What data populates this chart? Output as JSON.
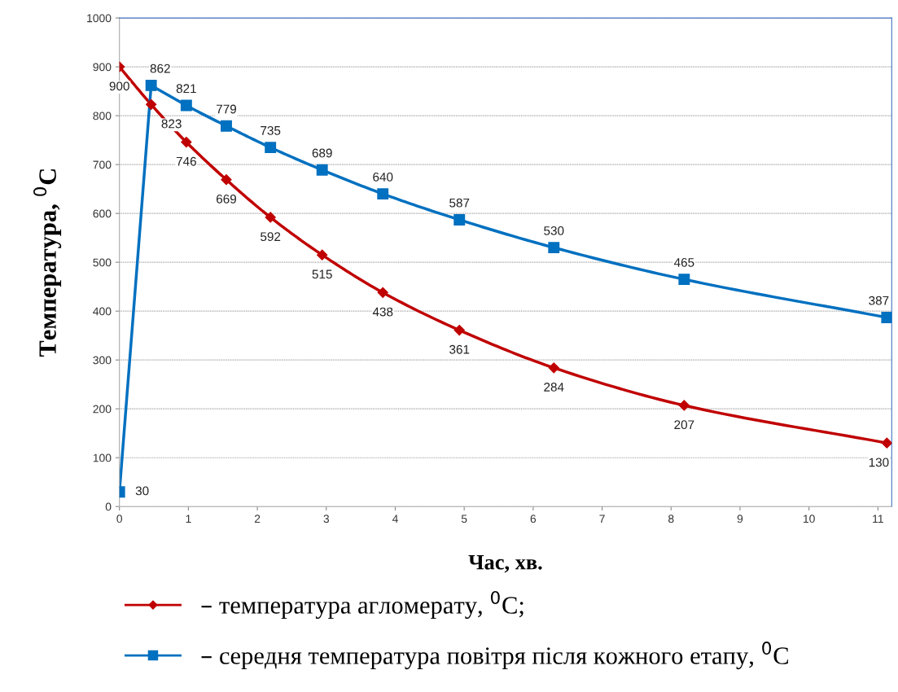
{
  "chart_data": {
    "type": "line",
    "xlabel": "Час, хв.",
    "ylabel": "Температура, $^{0}$C",
    "x": [
      0,
      0.46,
      0.97,
      1.55,
      2.19,
      2.94,
      3.82,
      4.93,
      6.3,
      8.19,
      11.13
    ],
    "series": [
      {
        "name": "– температура агломерату, $^{0}$C;",
        "color": "#c00000",
        "marker": "diamond",
        "values": [
          900,
          823,
          746,
          669,
          592,
          515,
          438,
          361,
          284,
          207,
          130
        ]
      },
      {
        "name": "– середня температура повітря після кожного етапу, $^{0}$C",
        "color": "#0070c0",
        "marker": "square",
        "values": [
          30,
          862,
          821,
          779,
          735,
          689,
          640,
          587,
          530,
          465,
          387
        ]
      }
    ],
    "xlim": [
      0,
      11.2
    ],
    "xticks": [
      0,
      1,
      2,
      3,
      4,
      5,
      6,
      7,
      8,
      9,
      10,
      11
    ],
    "ylim": [
      0,
      1000
    ],
    "yticks": [
      0,
      100,
      200,
      300,
      400,
      500,
      600,
      700,
      800,
      900,
      1000
    ],
    "grid": "y",
    "legend": "bottom",
    "data_labels": true
  }
}
